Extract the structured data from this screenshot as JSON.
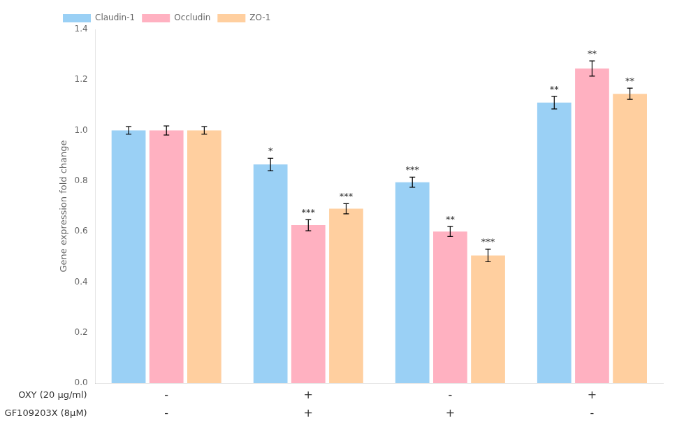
{
  "chart_data": {
    "type": "bar",
    "categories": [
      [
        "-",
        "-"
      ],
      [
        "+",
        "+"
      ],
      [
        "-",
        "+"
      ],
      [
        "+",
        "-"
      ]
    ],
    "annotations": [
      "OXY (20 μg/ml)",
      "GF109203X (8μM)"
    ],
    "ylabel": "Gene expression fold change",
    "series": [
      {
        "name": "Claudin-1",
        "values": [
          1.0,
          0.865,
          0.795,
          1.11
        ],
        "error": [
          0.015,
          0.025,
          0.02,
          0.025
        ],
        "stars": [
          null,
          "*",
          "***",
          "**"
        ]
      },
      {
        "name": "Occludin",
        "values": [
          1.0,
          0.625,
          0.6,
          1.245
        ],
        "error": [
          0.018,
          0.022,
          0.02,
          0.03
        ],
        "stars": [
          null,
          "***",
          "**",
          "**"
        ]
      },
      {
        "name": "ZO-1",
        "values": [
          1.0,
          0.69,
          0.505,
          1.145
        ],
        "error": [
          0.015,
          0.02,
          0.025,
          0.022
        ],
        "stars": [
          null,
          "***",
          "***",
          "**"
        ]
      }
    ],
    "ylim": [
      0.0,
      1.4
    ],
    "yticks": [
      {
        "value": 0,
        "label": "0.0"
      },
      0.2,
      0.4,
      0.6,
      0.8,
      {
        "value": 1,
        "label": "1.0"
      },
      1.2,
      1.4
    ],
    "grid": false,
    "legend": "upper left"
  }
}
